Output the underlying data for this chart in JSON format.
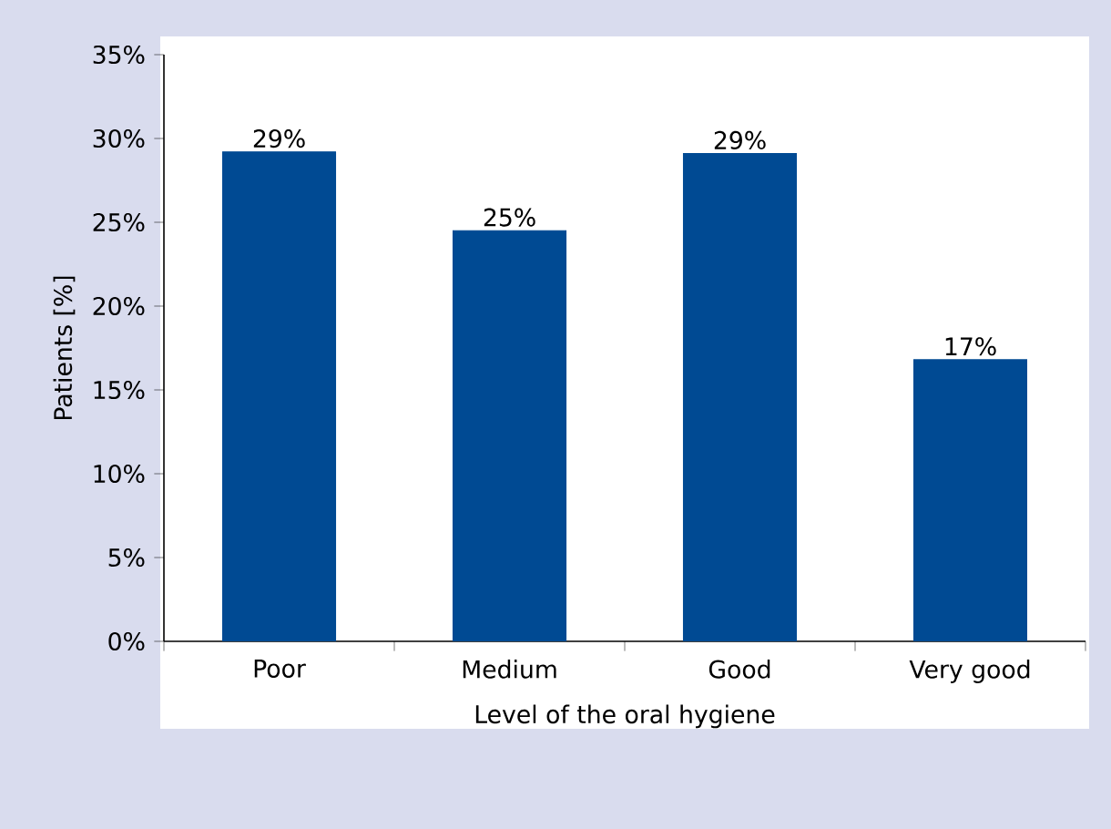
{
  "chart_data": {
    "type": "bar",
    "xlabel": "Level of the oral hygiene",
    "ylabel": "Patients [%]",
    "categories": [
      "Poor",
      "Medium",
      "Good",
      "Very good"
    ],
    "values": [
      29.2,
      24.5,
      29.1,
      16.8
    ],
    "value_labels": [
      "29%",
      "25%",
      "29%",
      "17%"
    ],
    "color": "#004a93",
    "ylim": [
      0,
      35
    ],
    "yticks": [
      {
        "value": 0,
        "label": "0%"
      },
      {
        "value": 5,
        "label": "5%"
      },
      {
        "value": 10,
        "label": "10%"
      },
      {
        "value": 15,
        "label": "15%"
      },
      {
        "value": 20,
        "label": "20%"
      },
      {
        "value": 25,
        "label": "25%"
      },
      {
        "value": 30,
        "label": "30%"
      },
      {
        "value": 35,
        "label": "35%"
      }
    ],
    "grid": false
  }
}
